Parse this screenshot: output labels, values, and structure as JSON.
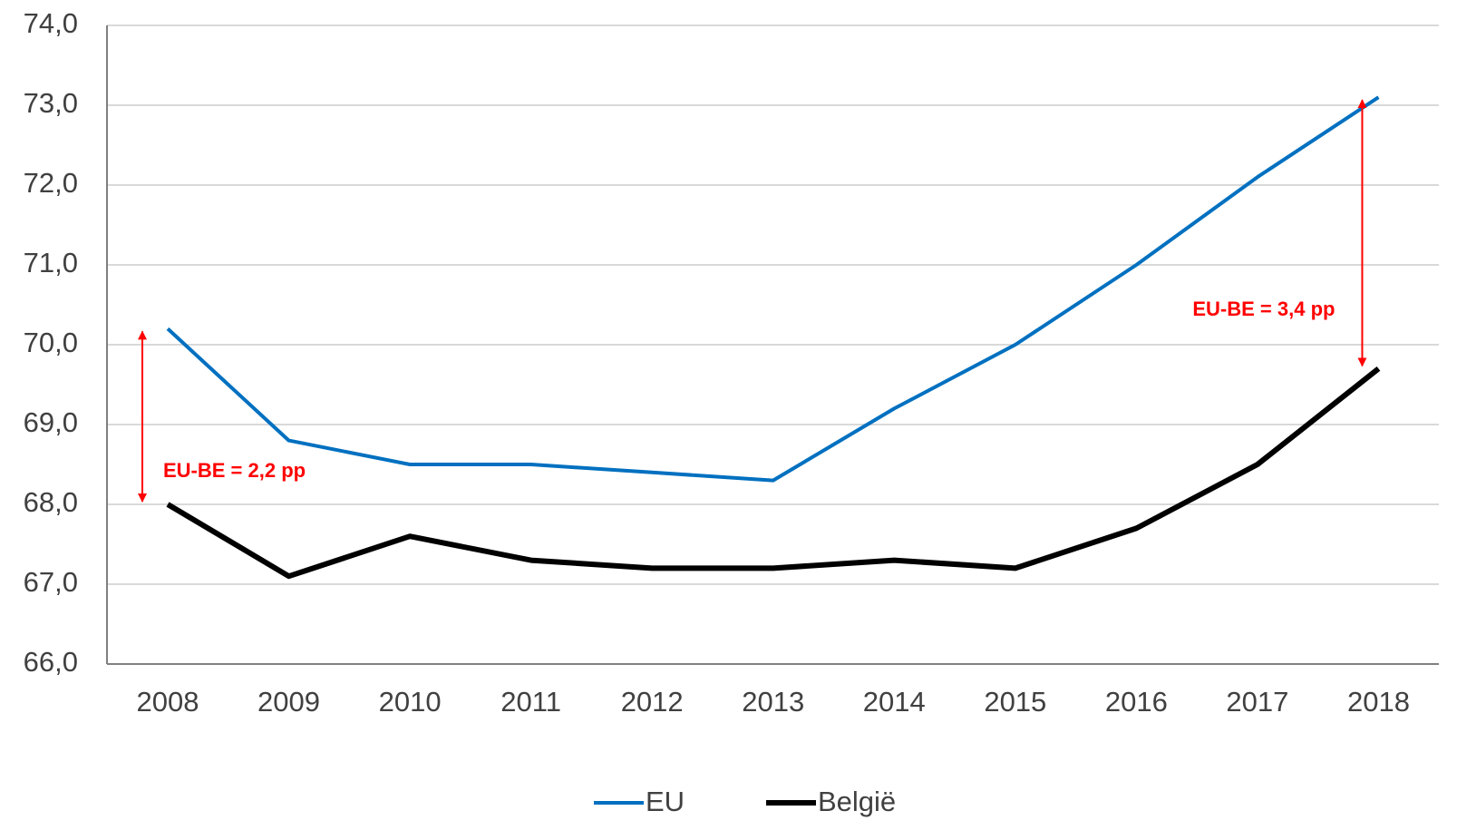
{
  "chart_data": {
    "type": "line",
    "categories": [
      "2008",
      "2009",
      "2010",
      "2011",
      "2012",
      "2013",
      "2014",
      "2015",
      "2016",
      "2017",
      "2018"
    ],
    "series": [
      {
        "name": "EU",
        "color": "#0070c0",
        "values": [
          70.2,
          68.8,
          68.5,
          68.5,
          68.4,
          68.3,
          69.2,
          70.0,
          71.0,
          72.1,
          73.1
        ]
      },
      {
        "name": "België",
        "color": "#000000",
        "values": [
          68.0,
          67.1,
          67.6,
          67.3,
          67.2,
          67.2,
          67.3,
          67.2,
          67.7,
          68.5,
          69.7
        ]
      }
    ],
    "ylim": [
      66,
      74
    ],
    "yticks": [
      {
        "value": 66,
        "label": "66,0"
      },
      {
        "value": 67,
        "label": "67,0"
      },
      {
        "value": 68,
        "label": "68,0"
      },
      {
        "value": 69,
        "label": "69,0"
      },
      {
        "value": 70,
        "label": "70,0"
      },
      {
        "value": 71,
        "label": "71,0"
      },
      {
        "value": 72,
        "label": "72,0"
      },
      {
        "value": 73,
        "label": "73,0"
      },
      {
        "value": 74,
        "label": "74,0"
      }
    ],
    "grid": true,
    "legend": "bottom",
    "annotations": [
      "EU-BE = 2,2 pp",
      "EU-BE = 3,4 pp"
    ],
    "annotation_color": "#ff0000"
  }
}
